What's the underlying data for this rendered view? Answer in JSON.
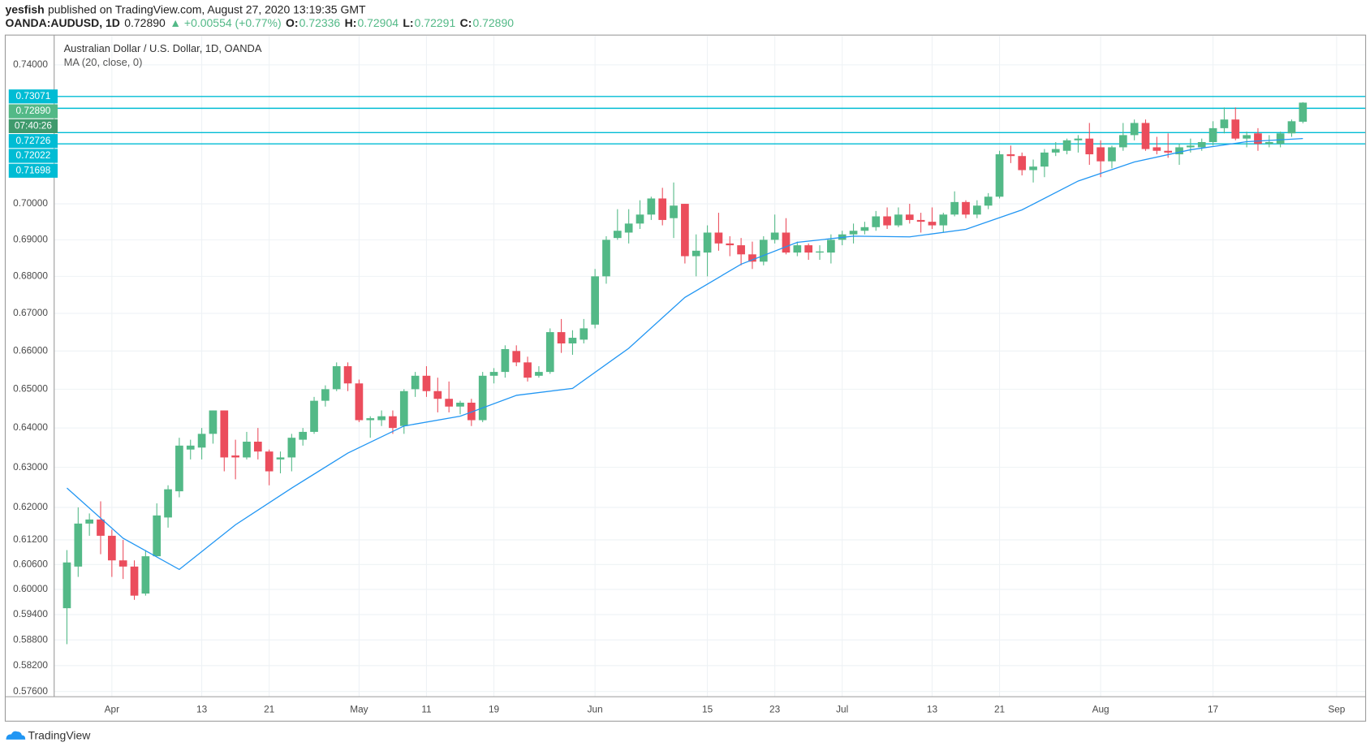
{
  "header": {
    "author": "yesfish",
    "published": "published on TradingView.com, August 27, 2020 13:19:35 GMT",
    "symbol": "OANDA:AUDUSD, 1D",
    "price": "0.72890",
    "change": "▲ +0.00554 (+0.77%)",
    "ohlc": [
      {
        "key": "O:",
        "value": "0.72336"
      },
      {
        "key": "H:",
        "value": "0.72904"
      },
      {
        "key": "L:",
        "value": "0.72291"
      },
      {
        "key": "C:",
        "value": "0.72890"
      }
    ]
  },
  "footer": {
    "brand": "TradingView"
  },
  "chart_data": {
    "type": "candlestick",
    "title": "Australian Dollar / U.S. Dollar, 1D, OANDA",
    "log": true,
    "grid": true,
    "up_color": "#53b987",
    "down_color": "#eb4d5c",
    "level_color": "#00bcd4",
    "ylim": [
      0.5748,
      0.7486
    ],
    "yticks": [
      {
        "value": 0.74,
        "label": "0.74000"
      },
      {
        "value": 0.7,
        "label": "0.70000"
      },
      {
        "value": 0.69,
        "label": "0.69000"
      },
      {
        "value": 0.68,
        "label": "0.68000"
      },
      {
        "value": 0.67,
        "label": "0.67000"
      },
      {
        "value": 0.66,
        "label": "0.66000"
      },
      {
        "value": 0.65,
        "label": "0.65000"
      },
      {
        "value": 0.64,
        "label": "0.64000"
      },
      {
        "value": 0.63,
        "label": "0.63000"
      },
      {
        "value": 0.62,
        "label": "0.62000"
      },
      {
        "value": 0.612,
        "label": "0.61200"
      },
      {
        "value": 0.606,
        "label": "0.60600"
      },
      {
        "value": 0.6,
        "label": "0.60000"
      },
      {
        "value": 0.594,
        "label": "0.59400"
      },
      {
        "value": 0.588,
        "label": "0.58800"
      },
      {
        "value": 0.582,
        "label": "0.58200"
      },
      {
        "value": 0.576,
        "label": "0.57600"
      }
    ],
    "xticks": [
      {
        "value": "04-01",
        "label": "Apr"
      },
      {
        "value": "04-13",
        "label": "13"
      },
      {
        "value": "04-21",
        "label": "21"
      },
      {
        "value": "05-01",
        "label": "May"
      },
      {
        "value": "05-11",
        "label": "11"
      },
      {
        "value": "05-19",
        "label": "19"
      },
      {
        "value": "06-01",
        "label": "Jun"
      },
      {
        "value": "06-15",
        "label": "15"
      },
      {
        "value": "06-23",
        "label": "23"
      },
      {
        "value": "07-01",
        "label": "Jul"
      },
      {
        "value": "07-13",
        "label": "13"
      },
      {
        "value": "07-21",
        "label": "21"
      },
      {
        "value": "08-03",
        "label": "Aug"
      },
      {
        "value": "08-17",
        "label": "17"
      },
      {
        "value": "09-01",
        "label": "Sep"
      }
    ],
    "x": [
      "03-26",
      "03-27",
      "03-30",
      "03-31",
      "04-01",
      "04-02",
      "04-03",
      "04-06",
      "04-07",
      "04-08",
      "04-09",
      "04-10",
      "04-13",
      "04-14",
      "04-15",
      "04-16",
      "04-17",
      "04-20",
      "04-21",
      "04-22",
      "04-23",
      "04-24",
      "04-27",
      "04-28",
      "04-29",
      "04-30",
      "05-01",
      "05-04",
      "05-05",
      "05-06",
      "05-07",
      "05-08",
      "05-11",
      "05-12",
      "05-13",
      "05-14",
      "05-15",
      "05-18",
      "05-19",
      "05-20",
      "05-21",
      "05-22",
      "05-25",
      "05-26",
      "05-27",
      "05-28",
      "05-29",
      "06-01",
      "06-02",
      "06-03",
      "06-04",
      "06-05",
      "06-08",
      "06-09",
      "06-10",
      "06-11",
      "06-12",
      "06-15",
      "06-16",
      "06-17",
      "06-18",
      "06-19",
      "06-22",
      "06-23",
      "06-24",
      "06-25",
      "06-26",
      "06-29",
      "06-30",
      "07-01",
      "07-02",
      "07-03",
      "07-06",
      "07-07",
      "07-08",
      "07-09",
      "07-10",
      "07-13",
      "07-14",
      "07-15",
      "07-16",
      "07-17",
      "07-20",
      "07-21",
      "07-22",
      "07-23",
      "07-24",
      "07-27",
      "07-28",
      "07-29",
      "07-30",
      "07-31",
      "08-03",
      "08-04",
      "08-05",
      "08-06",
      "08-07",
      "08-10",
      "08-11",
      "08-12",
      "08-13",
      "08-14",
      "08-17",
      "08-18",
      "08-19",
      "08-20",
      "08-21",
      "08-24",
      "08-25",
      "08-26",
      "08-27"
    ],
    "open": [
      0.5955,
      0.6055,
      0.616,
      0.617,
      0.613,
      0.607,
      0.6055,
      0.599,
      0.608,
      0.6175,
      0.624,
      0.6345,
      0.635,
      0.6385,
      0.6445,
      0.633,
      0.6325,
      0.6365,
      0.634,
      0.632,
      0.6325,
      0.637,
      0.639,
      0.647,
      0.65,
      0.656,
      0.6515,
      0.642,
      0.642,
      0.643,
      0.6405,
      0.65,
      0.6535,
      0.6495,
      0.6475,
      0.6455,
      0.6465,
      0.642,
      0.6535,
      0.6545,
      0.66,
      0.657,
      0.6535,
      0.6545,
      0.665,
      0.662,
      0.663,
      0.667,
      0.68,
      0.6905,
      0.692,
      0.6945,
      0.697,
      0.7015,
      0.696,
      0.7,
      0.6855,
      0.6865,
      0.692,
      0.689,
      0.6885,
      0.686,
      0.684,
      0.69,
      0.692,
      0.6865,
      0.6885,
      0.6865,
      0.6865,
      0.69,
      0.6915,
      0.6925,
      0.6935,
      0.6965,
      0.694,
      0.697,
      0.6955,
      0.695,
      0.694,
      0.697,
      0.7005,
      0.697,
      0.6995,
      0.702,
      0.714,
      0.7135,
      0.7095,
      0.7105,
      0.7145,
      0.715,
      0.718,
      0.7185,
      0.716,
      0.712,
      0.716,
      0.7195,
      0.723,
      0.716,
      0.715,
      0.714,
      0.716,
      0.716,
      0.7175,
      0.7215,
      0.724,
      0.7185,
      0.72,
      0.717,
      0.717,
      0.72,
      0.72336
    ],
    "high": [
      0.6095,
      0.62,
      0.6185,
      0.6215,
      0.6145,
      0.612,
      0.607,
      0.6095,
      0.621,
      0.6255,
      0.6375,
      0.637,
      0.64,
      0.6445,
      0.6445,
      0.637,
      0.639,
      0.64,
      0.6345,
      0.634,
      0.6385,
      0.64,
      0.648,
      0.651,
      0.657,
      0.657,
      0.6525,
      0.643,
      0.6445,
      0.6445,
      0.65,
      0.6545,
      0.656,
      0.653,
      0.652,
      0.647,
      0.6475,
      0.6545,
      0.6555,
      0.6615,
      0.6615,
      0.6585,
      0.656,
      0.666,
      0.6685,
      0.6655,
      0.6685,
      0.682,
      0.691,
      0.6985,
      0.6985,
      0.701,
      0.702,
      0.7045,
      0.706,
      0.7,
      0.6915,
      0.694,
      0.6975,
      0.691,
      0.6905,
      0.6895,
      0.691,
      0.697,
      0.696,
      0.6895,
      0.689,
      0.6885,
      0.6915,
      0.6925,
      0.6945,
      0.695,
      0.698,
      0.699,
      0.699,
      0.7,
      0.6975,
      0.699,
      0.6975,
      0.7035,
      0.701,
      0.701,
      0.703,
      0.715,
      0.7165,
      0.7145,
      0.7125,
      0.7155,
      0.7175,
      0.7185,
      0.7195,
      0.723,
      0.718,
      0.7165,
      0.723,
      0.724,
      0.724,
      0.719,
      0.72,
      0.717,
      0.7185,
      0.7185,
      0.7235,
      0.7275,
      0.7275,
      0.7205,
      0.7215,
      0.7195,
      0.7205,
      0.724,
      0.72904
    ],
    "low": [
      0.587,
      0.603,
      0.613,
      0.6085,
      0.603,
      0.6025,
      0.5975,
      0.5985,
      0.608,
      0.615,
      0.6225,
      0.632,
      0.632,
      0.636,
      0.629,
      0.627,
      0.632,
      0.632,
      0.6255,
      0.6285,
      0.629,
      0.6355,
      0.6385,
      0.6455,
      0.6495,
      0.6495,
      0.6415,
      0.6375,
      0.6405,
      0.6385,
      0.6385,
      0.648,
      0.648,
      0.644,
      0.644,
      0.6435,
      0.6405,
      0.6415,
      0.6515,
      0.653,
      0.656,
      0.652,
      0.653,
      0.654,
      0.6595,
      0.659,
      0.662,
      0.666,
      0.678,
      0.69,
      0.689,
      0.693,
      0.6955,
      0.694,
      0.6905,
      0.6835,
      0.68,
      0.68,
      0.687,
      0.6855,
      0.683,
      0.682,
      0.683,
      0.689,
      0.686,
      0.6855,
      0.6845,
      0.6845,
      0.6835,
      0.6885,
      0.689,
      0.6915,
      0.6925,
      0.693,
      0.6935,
      0.6945,
      0.692,
      0.693,
      0.692,
      0.6965,
      0.696,
      0.696,
      0.6985,
      0.7015,
      0.7115,
      0.708,
      0.706,
      0.7075,
      0.7135,
      0.714,
      0.7145,
      0.711,
      0.7075,
      0.71,
      0.715,
      0.718,
      0.715,
      0.714,
      0.713,
      0.711,
      0.7145,
      0.715,
      0.7165,
      0.72,
      0.718,
      0.716,
      0.715,
      0.716,
      0.716,
      0.719,
      0.72291
    ],
    "close": [
      0.6065,
      0.616,
      0.617,
      0.613,
      0.607,
      0.6055,
      0.5985,
      0.608,
      0.618,
      0.6245,
      0.6355,
      0.6355,
      0.6385,
      0.6445,
      0.6325,
      0.6325,
      0.6365,
      0.634,
      0.629,
      0.6325,
      0.6375,
      0.639,
      0.647,
      0.65,
      0.656,
      0.6515,
      0.642,
      0.6425,
      0.643,
      0.64,
      0.6495,
      0.6535,
      0.6495,
      0.6475,
      0.6455,
      0.6465,
      0.642,
      0.6535,
      0.6545,
      0.6605,
      0.657,
      0.653,
      0.6545,
      0.665,
      0.662,
      0.6635,
      0.666,
      0.68,
      0.69,
      0.6925,
      0.6945,
      0.697,
      0.7015,
      0.6955,
      0.6995,
      0.6855,
      0.687,
      0.692,
      0.689,
      0.6885,
      0.686,
      0.684,
      0.69,
      0.692,
      0.6865,
      0.6885,
      0.6865,
      0.6868,
      0.69,
      0.6915,
      0.6925,
      0.6935,
      0.6965,
      0.694,
      0.697,
      0.6955,
      0.695,
      0.694,
      0.697,
      0.7005,
      0.697,
      0.6995,
      0.702,
      0.714,
      0.7135,
      0.7095,
      0.7105,
      0.7145,
      0.7155,
      0.718,
      0.7185,
      0.714,
      0.712,
      0.716,
      0.7195,
      0.723,
      0.7155,
      0.715,
      0.7145,
      0.716,
      0.7165,
      0.7175,
      0.7215,
      0.724,
      0.7185,
      0.7195,
      0.717,
      0.7175,
      0.72,
      0.7235,
      0.7289
    ],
    "ma": {
      "name": "MA (20, close, 0)",
      "color": "#2196f3",
      "x": [
        "03-26",
        "04-02",
        "04-09",
        "04-16",
        "04-23",
        "04-30",
        "05-07",
        "05-14",
        "05-21",
        "05-28",
        "06-04",
        "06-11",
        "06-18",
        "06-25",
        "07-02",
        "07-09",
        "07-16",
        "07-23",
        "07-30",
        "08-06",
        "08-13",
        "08-20",
        "08-27"
      ],
      "values": [
        0.6248,
        0.6124,
        0.6048,
        0.6157,
        0.6248,
        0.6336,
        0.6405,
        0.643,
        0.6484,
        0.6502,
        0.6607,
        0.6743,
        0.6833,
        0.6893,
        0.691,
        0.6908,
        0.6929,
        0.6983,
        0.7064,
        0.7118,
        0.7153,
        0.7176,
        0.7185
      ]
    },
    "levels": [
      0.73071,
      0.72726,
      0.72022,
      0.71698
    ],
    "last_price": {
      "value": 0.7289,
      "label": "0.72890",
      "countdown": "07:40:26"
    }
  }
}
